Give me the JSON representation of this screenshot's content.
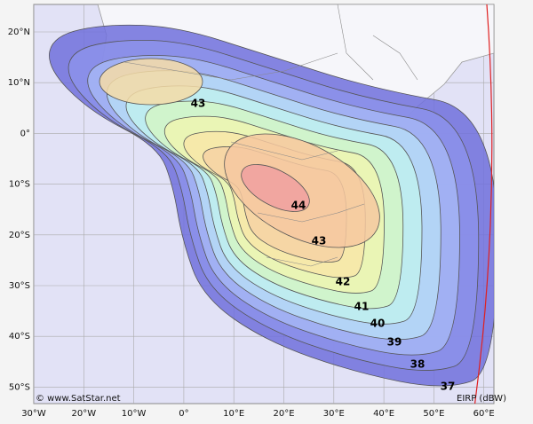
{
  "map": {
    "lat_labels": [
      "20°N",
      "10°N",
      "0°",
      "10°S",
      "20°S",
      "30°S",
      "40°S",
      "50°S"
    ],
    "lon_labels": [
      "30°W",
      "20°W",
      "10°W",
      "0°",
      "10°E",
      "20°E",
      "30°E",
      "40°E",
      "50°E",
      "60°E"
    ],
    "contour_labels": [
      "43",
      "44",
      "43",
      "42",
      "41",
      "40",
      "39",
      "38",
      "37"
    ],
    "credit": "© www.SatStar.net",
    "legend": "EIRP (dBW)"
  }
}
